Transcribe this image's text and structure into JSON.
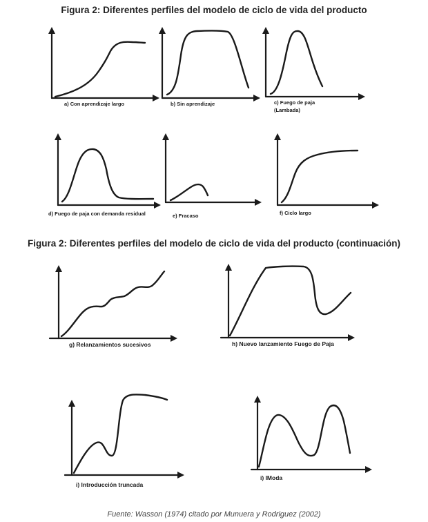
{
  "figure_title_1": "Figura 2: Diferentes perfiles del modelo de ciclo de vida del producto",
  "figure_title_2": "Figura 2: Diferentes perfiles del modelo de ciclo de vida del producto (continuación)",
  "panels": {
    "a": "a) Con aprendizaje largo",
    "b": "b) Sin aprendizaje",
    "c_line1": "c) Fuego de paja",
    "c_line2": "(Lambada)",
    "d": "d) Fuego de paja con demanda residual",
    "e": "e) Fracaso",
    "f": "f) Ciclo largo",
    "g": "g) Relanzamientos sucesivos",
    "h": "h) Nuevo lanzamiento  Fuego de Paja",
    "i": "i) Introducción truncada",
    "j": "i) IModa"
  },
  "source": "Fuente: Wasson (1974) citado por Munuera y Rodriguez (2002)"
}
